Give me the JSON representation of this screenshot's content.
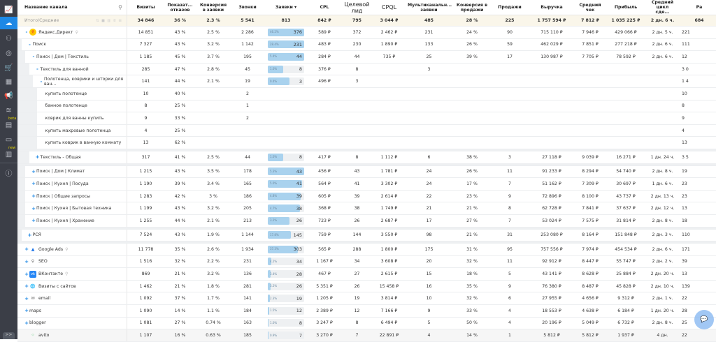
{
  "sidebar": {
    "items": [
      {
        "icon": "dashboard-icon",
        "glyph": "📈"
      },
      {
        "icon": "channels-icon",
        "glyph": "☁",
        "active": true
      },
      {
        "icon": "hierarchy-icon",
        "glyph": "⚇"
      },
      {
        "icon": "money-icon",
        "glyph": "◎"
      },
      {
        "icon": "cart-icon",
        "glyph": "🛒"
      },
      {
        "icon": "calendar-icon",
        "glyph": "▦"
      },
      {
        "icon": "megaphone-icon",
        "glyph": "📢"
      },
      {
        "icon": "layers-icon",
        "glyph": "≋"
      },
      {
        "icon": "reports-icon",
        "glyph": "▤",
        "tag": "beta"
      },
      {
        "icon": "monitor-icon",
        "glyph": "▭"
      },
      {
        "icon": "docs-icon",
        "glyph": "▥",
        "tag": "new"
      }
    ],
    "info_glyph": "ⓘ",
    "expand_label": ">>"
  },
  "header": {
    "name": "Название канала",
    "cols": [
      "Визиты",
      "Показат... отказов",
      "Конверсия в заявки",
      "Звонки",
      "Заявки ▾",
      "CPL",
      "Целевой лид",
      "CPQL",
      "Мультиканальн... заявки",
      "Конверсия в продажи",
      "Продажи",
      "Выручка",
      "Средний чек",
      "Прибыль",
      "Средний цикл сде...",
      "Ра"
    ]
  },
  "totals": {
    "label": "Итого/Средние",
    "values": [
      "34 846",
      "36 %",
      "2.3 %",
      "5 541",
      "813",
      "842 ₽",
      "795",
      "3 044 ₽",
      "485",
      "28 %",
      "225",
      "1 757 594 ₽",
      "7 812 ₽",
      "1 035 225 ₽",
      "2 дн. 6 ч.",
      "684"
    ]
  },
  "rows": [
    {
      "name": "Яндекс.Директ",
      "level": 0,
      "exp": "-",
      "icon": "yandex",
      "pin": true,
      "v": [
        "14 851",
        "43 %",
        "2.5 %",
        "2 286",
        [
          "46.2%",
          "376",
          1
        ],
        "589 ₽",
        "372",
        "2 462 ₽",
        "231",
        "24 %",
        "90",
        "715 110 ₽",
        "7 946 ₽",
        "429 066 ₽",
        "2 дн. 5 ч.",
        "221"
      ],
      "m": "gr.r.gr.r......."
    },
    {
      "name": "Поиск",
      "level": 1,
      "exp": "-",
      "v": [
        "7 327",
        "43 %",
        "3.2 %",
        "1 142",
        [
          "28.4%",
          "231",
          1
        ],
        "483 ₽",
        "230",
        "1 890 ₽",
        "133",
        "26 %",
        "59",
        "462 029 ₽",
        "7 851 ₽",
        "277 218 ₽",
        "2 дн. 6 ч.",
        "111"
      ],
      "m": "rrgrrg.g.g..grgrg"
    },
    {
      "name": "Поиск | Дом | Текстиль",
      "level": 2,
      "exp": "-",
      "v": [
        "1 185",
        "45 %",
        "3.7 %",
        "195",
        [
          "5.4%",
          "44",
          1
        ],
        "284 ₽",
        "44",
        "735 ₽",
        "25",
        "39 %",
        "17",
        "130 987 ₽",
        "7 705 ₽",
        "78 592 ₽",
        "2 дн. 6 ч.",
        "12"
      ],
      "m": "rrg.rgrgrgrg.g.."
    },
    {
      "name": "Текстиль для ванной",
      "level": 3,
      "exp": "-",
      "v": [
        "285",
        "47 %",
        "2.8 %",
        "45",
        [
          "1.0%",
          "8",
          0.43
        ],
        "376 ₽",
        "8",
        "",
        "3",
        "",
        "",
        "",
        "",
        "",
        "",
        "3 0"
      ],
      "m": "r....r.r.r.....g"
    },
    {
      "name": "Полотенца, коврики и шторки для ван...",
      "level": 4,
      "exp": "-",
      "v": [
        "141",
        "44 %",
        "2.1 %",
        "19",
        [
          "0.4%",
          "3",
          0.6
        ],
        "496 ₽",
        "3",
        "",
        "",
        "",
        "",
        "",
        "",
        "",
        "",
        "1 4"
      ],
      "m": "rgrr.rr........g"
    },
    {
      "name": "купить полотенце",
      "level": 5,
      "v": [
        "10",
        "40 %",
        "",
        "2",
        "",
        "",
        "",
        "",
        "",
        "",
        "",
        "",
        "",
        "",
        "",
        "10"
      ],
      "m": "................"
    },
    {
      "name": "банное полотенце",
      "level": 5,
      "v": [
        "8",
        "25 %",
        "",
        "1",
        "",
        "",
        "",
        "",
        "",
        "",
        "",
        "",
        "",
        "",
        "",
        "8"
      ],
      "m": ".g.............."
    },
    {
      "name": "коврик для ванны купить",
      "level": 5,
      "v": [
        "9",
        "33 %",
        "",
        "2",
        "",
        "",
        "",
        "",
        "",
        "",
        "",
        "",
        "",
        "",
        "",
        "9"
      ],
      "m": "................"
    },
    {
      "name": "купить махровые полотенца",
      "level": 5,
      "v": [
        "4",
        "25 %",
        "",
        "",
        "",
        "",
        "",
        "",
        "",
        "",
        "",
        "",
        "",
        "",
        "",
        "4"
      ],
      "m": "rg.............g"
    },
    {
      "name": "купить коврик в ванную комнату",
      "level": 5,
      "v": [
        "13",
        "62 %",
        "",
        "",
        "",
        "",
        "",
        "",
        "",
        "",
        "",
        "",
        "",
        "",
        "",
        "13"
      ],
      "m": "................"
    },
    {
      "gap": true
    },
    {
      "name": "Текстиль - Общая",
      "level": 3,
      "exp": "+",
      "v": [
        "317",
        "41 %",
        "2.5 %",
        "44",
        [
          "1.0%",
          "8",
          0.43
        ],
        "417 ₽",
        "8",
        "1 112 ₽",
        "6",
        "38 %",
        "3",
        "27 118 ₽",
        "9 039 ₽",
        "16 271 ₽",
        "1 дн. 24 ч.",
        "3 5"
      ],
      "m": "ggrrrrrr......g.g"
    },
    {
      "gap": true
    },
    {
      "name": "Поиск | Дом | Климат",
      "level": 2,
      "exp": "+",
      "v": [
        "1 215",
        "43 %",
        "3.5 %",
        "178",
        [
          "5.3%",
          "43",
          1
        ],
        "456 ₽",
        "43",
        "1 781 ₽",
        "24",
        "26 %",
        "11",
        "91 233 ₽",
        "8 294 ₽",
        "54 740 ₽",
        "2 дн. 8 ч.",
        "19"
      ],
      "m": "....r.......g..."
    },
    {
      "name": "Поиск | Кухня | Посуда",
      "level": 2,
      "exp": "+",
      "v": [
        "1 190",
        "39 %",
        "3.4 %",
        "165",
        [
          "5.0%",
          "41",
          0.94
        ],
        "564 ₽",
        "41",
        "3 302 ₽",
        "24",
        "17 %",
        "7",
        "51 162 ₽",
        "7 309 ₽",
        "30 697 ₽",
        "1 дн. 6 ч.",
        "23"
      ],
      "m": ".g.r...r.rrrrrgr"
    },
    {
      "name": "Поиск | Общие запросы",
      "level": 2,
      "exp": "+",
      "v": [
        "1 283",
        "42 %",
        "3 %",
        "186",
        [
          "4.8%",
          "39",
          0.9
        ],
        "605 ₽",
        "39",
        "2 614 ₽",
        "22",
        "23 %",
        "9",
        "72 896 ₽",
        "8 100 ₽",
        "43 737 ₽",
        "2 дн. 13 ч.",
        "23"
      ],
      "m": "g............rrr"
    },
    {
      "name": "Поиск | Кухня | Бытовая техника",
      "level": 2,
      "exp": "+",
      "v": [
        "1 199",
        "43 %",
        "3.2 %",
        "205",
        [
          "4.7%",
          "38",
          0.88
        ],
        "368 ₽",
        "38",
        "1 749 ₽",
        "21",
        "21 %",
        "8",
        "62 728 ₽",
        "7 841 ₽",
        "37 637 ₽",
        "2 дн. 12 ч.",
        "13"
      ],
      "m": "..............r."
    },
    {
      "name": "Поиск | Кухня | Хранение",
      "level": 2,
      "exp": "+",
      "v": [
        "1 255",
        "44 %",
        "2.1 %",
        "213",
        [
          "3.2%",
          "26",
          0.6
        ],
        "723 ₽",
        "26",
        "2 687 ₽",
        "17",
        "27 %",
        "7",
        "53 024 ₽",
        "7 575 ₽",
        "31 814 ₽",
        "2 дн. 8 ч.",
        "18"
      ],
      "m": "..rgrrr.rrr....."
    },
    {
      "gap": true
    },
    {
      "name": "РСЯ",
      "level": 1,
      "exp": "+",
      "v": [
        "7 524",
        "43 %",
        "1.9 %",
        "1 144",
        [
          "17.8%",
          "145",
          0.63
        ],
        "759 ₽",
        "144",
        "3 550 ₽",
        "98",
        "21 %",
        "31",
        "253 080 ₽",
        "8 164 ₽",
        "151 848 ₽",
        "2 дн. 3 ч.",
        "110"
      ],
      "m": "ggrgrrrrrrrrgrgg"
    },
    {
      "gap": true
    },
    {
      "name": "Google Ads",
      "level": 0,
      "exp": "+",
      "icon": "google",
      "pin": true,
      "v": [
        "11 778",
        "35 %",
        "2.6 %",
        "1 934",
        [
          "37.3%",
          "303",
          0.82
        ],
        "565 ₽",
        "288",
        "1 800 ₽",
        "175",
        "31 %",
        "95",
        "757 556 ₽",
        "7 974 ₽",
        "454 534 ₽",
        "2 дн. 6 ч.",
        "171"
      ],
      "m": ".......g..ggg.g.."
    },
    {
      "name": "SEO",
      "level": 0,
      "exp": "+",
      "icon": "seo",
      "v": [
        "1 516",
        "32 %",
        "2.2 %",
        "231",
        [
          "4.2%",
          "34",
          0.1
        ],
        "1 167 ₽",
        "34",
        "3 608 ₽",
        "20",
        "32 %",
        "11",
        "92 912 ₽",
        "8 447 ₽",
        "55 747 ₽",
        "2 дн. 2 ч.",
        "39"
      ],
      "m": "................"
    },
    {
      "name": "ВКонтакте",
      "level": 0,
      "exp": "+",
      "icon": "vk",
      "pin": true,
      "v": [
        "869",
        "21 %",
        "3.2 %",
        "136",
        [
          "3.4%",
          "28",
          0.08
        ],
        "467 ₽",
        "27",
        "2 615 ₽",
        "15",
        "18 %",
        "5",
        "43 141 ₽",
        "8 628 ₽",
        "25 884 ₽",
        "2 дн. 20 ч.",
        "13"
      ],
      "m": "r.gr.g......g..g"
    },
    {
      "name": "Визиты с сайтов",
      "level": 0,
      "exp": "+",
      "icon": "globe",
      "v": [
        "1 462",
        "21 %",
        "1.8 %",
        "281",
        [
          "3.2%",
          "26",
          0.07
        ],
        "5 351 ₽",
        "26",
        "15 458 ₽",
        "16",
        "35 %",
        "9",
        "76 380 ₽",
        "8 487 ₽",
        "45 828 ₽",
        "2 дн. 10 ч.",
        "139"
      ],
      "m": ".....r.........."
    },
    {
      "name": "email",
      "level": 0,
      "exp": "+",
      "icon": "mail",
      "v": [
        "1 092",
        "37 %",
        "1.7 %",
        "141",
        [
          "2.3%",
          "19",
          0.05
        ],
        "1 205 ₽",
        "19",
        "3 814 ₽",
        "10",
        "32 %",
        "6",
        "27 955 ₽",
        "4 656 ₽",
        "9 312 ₽",
        "2 дн. 1 ч.",
        "22"
      ],
      "m": "................"
    },
    {
      "name": "maps",
      "level": 0,
      "exp": "+",
      "v": [
        "1 090",
        "14 %",
        "1.1 %",
        "184",
        [
          "1.5%",
          "12",
          0.03
        ],
        "2 389 ₽",
        "12",
        "7 166 ₽",
        "9",
        "33 %",
        "4",
        "18 553 ₽",
        "4 638 ₽",
        "6 184 ₽",
        "1 дн. 20 ч.",
        "28"
      ],
      "m": ".g..........r.g."
    },
    {
      "name": "blogger",
      "level": 0,
      "exp": "+",
      "v": [
        "1 081",
        "27 %",
        "0.74 %",
        "163",
        [
          "1.0%",
          "8",
          0.02
        ],
        "3 247 ₽",
        "8",
        "6 494 ₽",
        "5",
        "50 %",
        "4",
        "20 196 ₽",
        "5 049 ₽",
        "6 732 ₽",
        "2 дн. 8 ч.",
        "25"
      ],
      "m": ".........g......"
    },
    {
      "name": "avito",
      "level": 0,
      "icon": "avito",
      "hover": true,
      "v": [
        "1 107",
        "16 %",
        "0.63 %",
        "185",
        [
          "0.9%",
          "7",
          0.01
        ],
        "3 270 ₽",
        "7",
        "22 891 ₽",
        "4",
        "14 %",
        "1",
        "5 812 ₽",
        "5 812 ₽",
        "1 937 ₽",
        "4 дн.",
        "22"
      ],
      "m": "..r.r.rrrrrr.r.r"
    }
  ],
  "chat_glyph": "💬"
}
